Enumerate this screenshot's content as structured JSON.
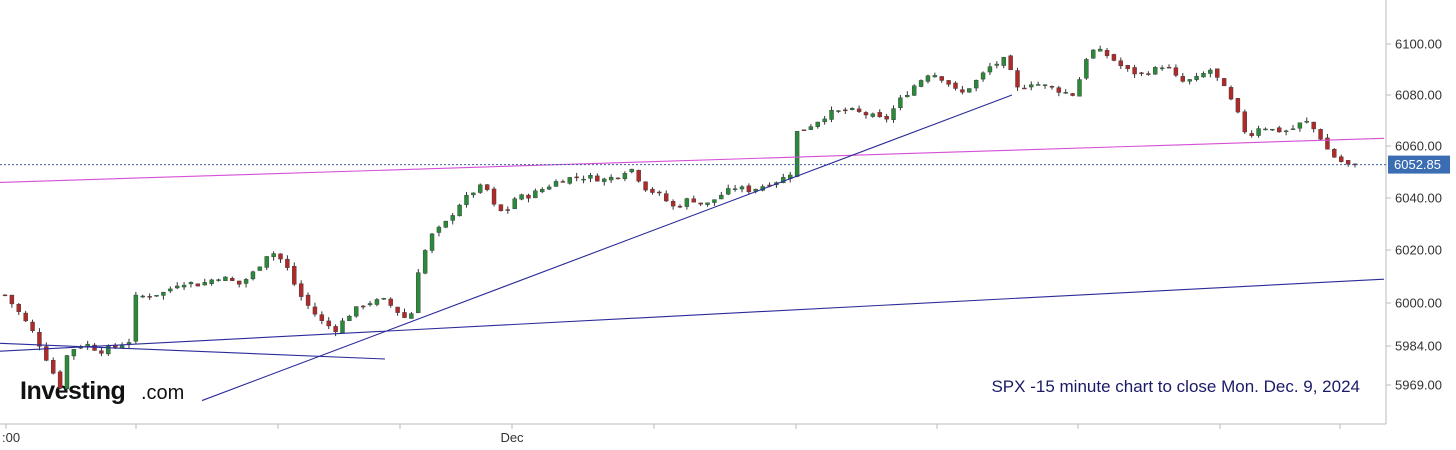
{
  "logo": {
    "name": "Investing",
    "suffix": ".com"
  },
  "caption": "SPX -15 minute chart to close Mon. Dec. 9, 2024",
  "colors": {
    "up_candle": "#2a8a3a",
    "down_candle": "#b02a2a",
    "wick": "#333333",
    "trendline_blue": "#2b2b9a",
    "trendline_magenta": "#d64fd6",
    "last_price_line": "#3b5fa8",
    "price_tag_bg": "#3b6db3",
    "axis": "#bbbbbb"
  },
  "chart_data": {
    "type": "candlestick",
    "title": "SPX -15 minute chart to close Mon. Dec. 9, 2024",
    "y_axis": {
      "position": "right",
      "ticks": [
        "6100.00",
        "6080.00",
        "6060.00",
        "6040.00",
        "6020.00",
        "6000.00",
        "5984.00",
        "5969.00"
      ],
      "tick_values": [
        6100,
        6080,
        6060,
        6040,
        6020,
        6000,
        5984,
        5969
      ],
      "range": [
        5960,
        6115
      ]
    },
    "x_axis": {
      "labels": [
        ":00",
        "Dec"
      ],
      "session_index_range": [
        0,
        1370
      ]
    },
    "last_price": {
      "label": "6052.85",
      "value": 6052.85
    },
    "trend_lines": [
      {
        "name": "upper-magenta",
        "color": "magenta",
        "from": [
          0,
          6046
        ],
        "to": [
          1384,
          6063
        ]
      },
      {
        "name": "long-blue-base",
        "color": "blue",
        "from": [
          0,
          5982
        ],
        "to": [
          1384,
          6009
        ]
      },
      {
        "name": "steep-blue-rising",
        "color": "blue",
        "from": [
          202,
          5962
        ],
        "to": [
          1012,
          6080
        ]
      },
      {
        "name": "short-blue-declining",
        "color": "blue",
        "from": [
          0,
          5985
        ],
        "to": [
          385,
          5979
        ]
      }
    ],
    "anchor_closes": [
      [
        5,
        6003
      ],
      [
        20,
        5996
      ],
      [
        35,
        5988
      ],
      [
        48,
        5978
      ],
      [
        60,
        5968
      ],
      [
        68,
        5982
      ],
      [
        85,
        5985
      ],
      [
        100,
        5982
      ],
      [
        118,
        5984
      ],
      [
        130,
        5986
      ],
      [
        135,
        6002
      ],
      [
        150,
        6003
      ],
      [
        165,
        6004
      ],
      [
        180,
        6008
      ],
      [
        200,
        6007
      ],
      [
        220,
        6010
      ],
      [
        240,
        6007
      ],
      [
        255,
        6012
      ],
      [
        270,
        6020
      ],
      [
        285,
        6015
      ],
      [
        298,
        6004
      ],
      [
        310,
        5998
      ],
      [
        322,
        5993
      ],
      [
        335,
        5990
      ],
      [
        350,
        5996
      ],
      [
        365,
        6000
      ],
      [
        385,
        6001
      ],
      [
        400,
        5996
      ],
      [
        410,
        5993
      ],
      [
        418,
        6012
      ],
      [
        430,
        6025
      ],
      [
        445,
        6030
      ],
      [
        460,
        6038
      ],
      [
        475,
        6043
      ],
      [
        485,
        6045
      ],
      [
        495,
        6036
      ],
      [
        505,
        6034
      ],
      [
        515,
        6040
      ],
      [
        530,
        6041
      ],
      [
        545,
        6044
      ],
      [
        560,
        6047
      ],
      [
        575,
        6048
      ],
      [
        590,
        6048
      ],
      [
        605,
        6047
      ],
      [
        620,
        6049
      ],
      [
        630,
        6052
      ],
      [
        645,
        6044
      ],
      [
        660,
        6041
      ],
      [
        675,
        6036
      ],
      [
        690,
        6040
      ],
      [
        705,
        6037
      ],
      [
        720,
        6041
      ],
      [
        735,
        6044
      ],
      [
        750,
        6043
      ],
      [
        765,
        6045
      ],
      [
        780,
        6047
      ],
      [
        790,
        6049
      ],
      [
        795,
        6065
      ],
      [
        810,
        6068
      ],
      [
        830,
        6073
      ],
      [
        850,
        6074
      ],
      [
        870,
        6072
      ],
      [
        885,
        6070
      ],
      [
        900,
        6078
      ],
      [
        915,
        6084
      ],
      [
        930,
        6089
      ],
      [
        945,
        6086
      ],
      [
        960,
        6080
      ],
      [
        975,
        6085
      ],
      [
        990,
        6091
      ],
      [
        1005,
        6094
      ],
      [
        1018,
        6082
      ],
      [
        1030,
        6085
      ],
      [
        1050,
        6083
      ],
      [
        1065,
        6081
      ],
      [
        1075,
        6080
      ],
      [
        1085,
        6094
      ],
      [
        1095,
        6098
      ],
      [
        1110,
        6095
      ],
      [
        1125,
        6090
      ],
      [
        1140,
        6088
      ],
      [
        1155,
        6090
      ],
      [
        1165,
        6092
      ],
      [
        1180,
        6085
      ],
      [
        1195,
        6086
      ],
      [
        1210,
        6090
      ],
      [
        1222,
        6084
      ],
      [
        1235,
        6075
      ],
      [
        1248,
        6063
      ],
      [
        1260,
        6068
      ],
      [
        1275,
        6066
      ],
      [
        1290,
        6066
      ],
      [
        1305,
        6070
      ],
      [
        1318,
        6065
      ],
      [
        1330,
        6057
      ],
      [
        1345,
        6053
      ],
      [
        1355,
        6052
      ]
    ],
    "candle_count": 197
  }
}
